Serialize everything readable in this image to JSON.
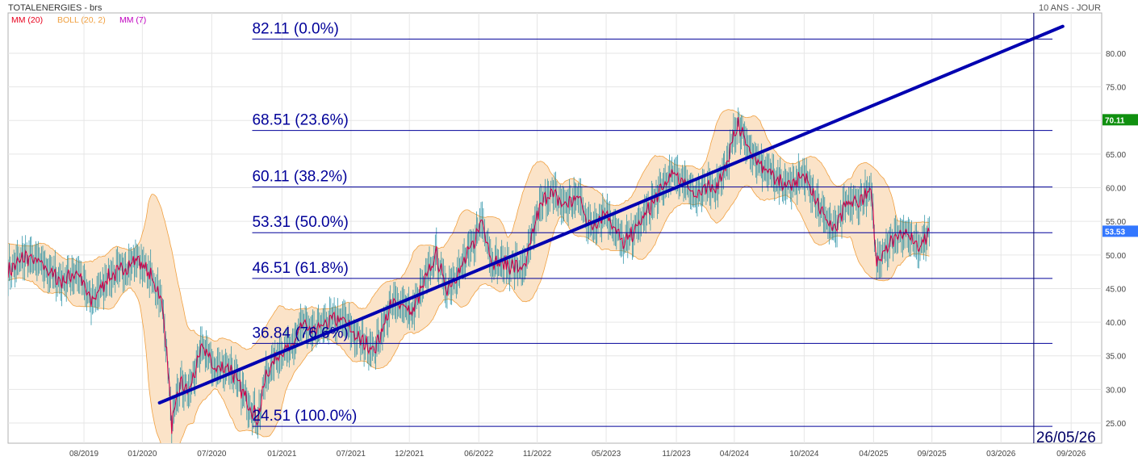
{
  "header": {
    "title": "TOTALENERGIES - brs",
    "period": "10 ANS - JOUR",
    "legend": [
      {
        "label": "MM (20)",
        "color": "#e8001c"
      },
      {
        "label": "BOLL (20, 2)",
        "color": "#f0a040"
      },
      {
        "label": "MM (7)",
        "color": "#c000c0"
      }
    ]
  },
  "chart_data": {
    "type": "line",
    "ylim": [
      22,
      86
    ],
    "y_ticks": [
      25,
      30,
      35,
      40,
      45,
      50,
      55,
      60,
      65,
      70,
      75,
      80
    ],
    "y_tick_labels": [
      "25.00",
      "30.00",
      "35.00",
      "40.00",
      "45.00",
      "50.00",
      "55.00",
      "60.00",
      "65.00",
      "70.00",
      "75.00",
      "80.00"
    ],
    "x_range": [
      "2019-01-14",
      "2026-11-20"
    ],
    "x_ticks": [
      "2019-08-01",
      "2020-01-01",
      "2020-07-01",
      "2021-01-01",
      "2021-07-01",
      "2021-12-01",
      "2022-06-01",
      "2022-11-01",
      "2023-05-01",
      "2023-11-01",
      "2024-04-01",
      "2024-10-01",
      "2025-04-01",
      "2025-09-01",
      "2026-03-01",
      "2026-09-01"
    ],
    "x_tick_labels": [
      "08/2019",
      "01/2020",
      "07/2020",
      "01/2021",
      "07/2021",
      "12/2021",
      "06/2022",
      "11/2022",
      "05/2023",
      "11/2023",
      "04/2024",
      "10/2024",
      "04/2025",
      "09/2025",
      "03/2026",
      "09/2026"
    ],
    "grid": true,
    "price_series": {
      "name": "TOTALENERGIES",
      "color": "#d0004a",
      "points": [
        [
          "2019-01-14",
          47.5
        ],
        [
          "2019-03-01",
          49.8
        ],
        [
          "2019-04-15",
          48.5
        ],
        [
          "2019-06-01",
          46.0
        ],
        [
          "2019-07-15",
          47.5
        ],
        [
          "2019-08-20",
          43.0
        ],
        [
          "2019-10-01",
          46.5
        ],
        [
          "2019-11-15",
          48.0
        ],
        [
          "2019-12-20",
          49.5
        ],
        [
          "2020-02-01",
          46.0
        ],
        [
          "2020-02-20",
          43.5
        ],
        [
          "2020-03-05",
          36.0
        ],
        [
          "2020-03-18",
          24.5
        ],
        [
          "2020-04-10",
          31.0
        ],
        [
          "2020-05-01",
          29.5
        ],
        [
          "2020-06-08",
          36.5
        ],
        [
          "2020-07-10",
          33.0
        ],
        [
          "2020-08-15",
          33.5
        ],
        [
          "2020-09-25",
          29.0
        ],
        [
          "2020-10-30",
          25.5
        ],
        [
          "2020-11-20",
          32.0
        ],
        [
          "2020-12-20",
          35.0
        ],
        [
          "2021-01-20",
          36.5
        ],
        [
          "2021-02-25",
          39.5
        ],
        [
          "2021-04-01",
          38.5
        ],
        [
          "2021-05-15",
          40.5
        ],
        [
          "2021-06-15",
          40.0
        ],
        [
          "2021-07-20",
          37.5
        ],
        [
          "2021-09-01",
          36.0
        ],
        [
          "2021-10-15",
          42.5
        ],
        [
          "2021-11-15",
          43.0
        ],
        [
          "2021-12-05",
          41.0
        ],
        [
          "2022-01-10",
          46.0
        ],
        [
          "2022-02-10",
          50.0
        ],
        [
          "2022-03-07",
          45.0
        ],
        [
          "2022-04-15",
          48.0
        ],
        [
          "2022-05-20",
          52.0
        ],
        [
          "2022-06-10",
          55.5
        ],
        [
          "2022-07-05",
          49.0
        ],
        [
          "2022-08-15",
          48.5
        ],
        [
          "2022-09-30",
          48.0
        ],
        [
          "2022-11-01",
          56.0
        ],
        [
          "2022-12-01",
          59.5
        ],
        [
          "2023-01-10",
          57.5
        ],
        [
          "2023-02-20",
          58.5
        ],
        [
          "2023-03-20",
          54.0
        ],
        [
          "2023-05-01",
          56.5
        ],
        [
          "2023-06-15",
          51.5
        ],
        [
          "2023-07-20",
          54.0
        ],
        [
          "2023-09-15",
          59.0
        ],
        [
          "2023-10-20",
          62.0
        ],
        [
          "2023-11-20",
          61.0
        ],
        [
          "2023-12-20",
          59.0
        ],
        [
          "2024-01-15",
          59.5
        ],
        [
          "2024-02-15",
          60.5
        ],
        [
          "2024-03-15",
          64.0
        ],
        [
          "2024-04-08",
          69.5
        ],
        [
          "2024-05-01",
          67.0
        ],
        [
          "2024-05-30",
          63.5
        ],
        [
          "2024-07-01",
          62.5
        ],
        [
          "2024-08-05",
          60.5
        ],
        [
          "2024-09-10",
          61.0
        ],
        [
          "2024-10-10",
          61.5
        ],
        [
          "2024-11-15",
          56.5
        ],
        [
          "2024-12-20",
          53.5
        ],
        [
          "2025-01-20",
          57.5
        ],
        [
          "2025-02-20",
          58.0
        ],
        [
          "2025-03-25",
          59.5
        ],
        [
          "2025-04-09",
          49.0
        ],
        [
          "2025-05-01",
          51.0
        ],
        [
          "2025-06-10",
          53.5
        ],
        [
          "2025-07-10",
          52.5
        ],
        [
          "2025-08-01",
          51.5
        ],
        [
          "2025-08-25",
          53.5
        ]
      ]
    },
    "last_value": {
      "value": 53.53,
      "label": "53.53",
      "color": "#3377ff"
    },
    "marker_value": {
      "value": 70.11,
      "label": "70.11",
      "color": "#109010"
    },
    "fibonacci": {
      "color": "#000099",
      "start_date": "2020-10-15",
      "levels": [
        {
          "value": 82.11,
          "label": "82.11  (0.0%)"
        },
        {
          "value": 68.51,
          "label": "68.51  (23.6%)"
        },
        {
          "value": 60.11,
          "label": "60.11  (38.2%)"
        },
        {
          "value": 53.31,
          "label": "53.31  (50.0%)"
        },
        {
          "value": 46.51,
          "label": "46.51  (61.8%)"
        },
        {
          "value": 36.84,
          "label": "36.84  (76.6%)"
        },
        {
          "value": 24.51,
          "label": "24.51  (100.0%)"
        }
      ]
    },
    "trendline": {
      "color": "#0000b0",
      "start": [
        "2020-02-15",
        28.0
      ],
      "end": [
        "2026-08-10",
        84.0
      ]
    },
    "vertical_marker": {
      "date": "2026-05-26",
      "label": "26/05/26",
      "color": "#000066"
    }
  }
}
